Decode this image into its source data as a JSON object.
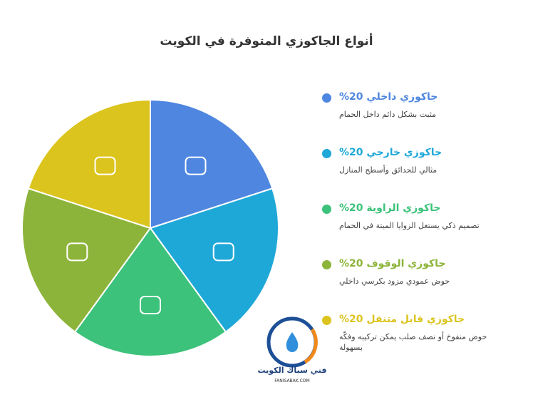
{
  "chart_data": {
    "type": "pie",
    "title": "أنواع الجاكوزي المتوفرة في الكويت",
    "categories": [
      "جاكوزي داخلي",
      "جاكوزي خارجي",
      "جاكوزي الزاوية",
      "جاكوزي الوقوف",
      "جاكوزي قابل متنقل"
    ],
    "values": [
      20,
      20,
      20,
      20,
      20
    ],
    "value_labels": [
      "20%",
      "20%",
      "20%",
      "20%",
      "20%"
    ],
    "descriptions": [
      "مثبت بشكل دائم داخل الحمام",
      "مثالي للحدائق وأسطح المنازل",
      "تصميم ذكي يستغل الزوايا الميتة في الحمام",
      "حوض عمودي مزود بكرسي داخلي",
      "حوض منفوخ أو نصف صلب يمكن تركيبه وفكّه بسهولة"
    ],
    "colors": [
      "#4f86e0",
      "#1ea8d8",
      "#3cc27a",
      "#8db43a",
      "#dcc41e"
    ]
  },
  "logo": {
    "name": "فني سباك الكويت",
    "url": "FANISABAK.COM"
  }
}
